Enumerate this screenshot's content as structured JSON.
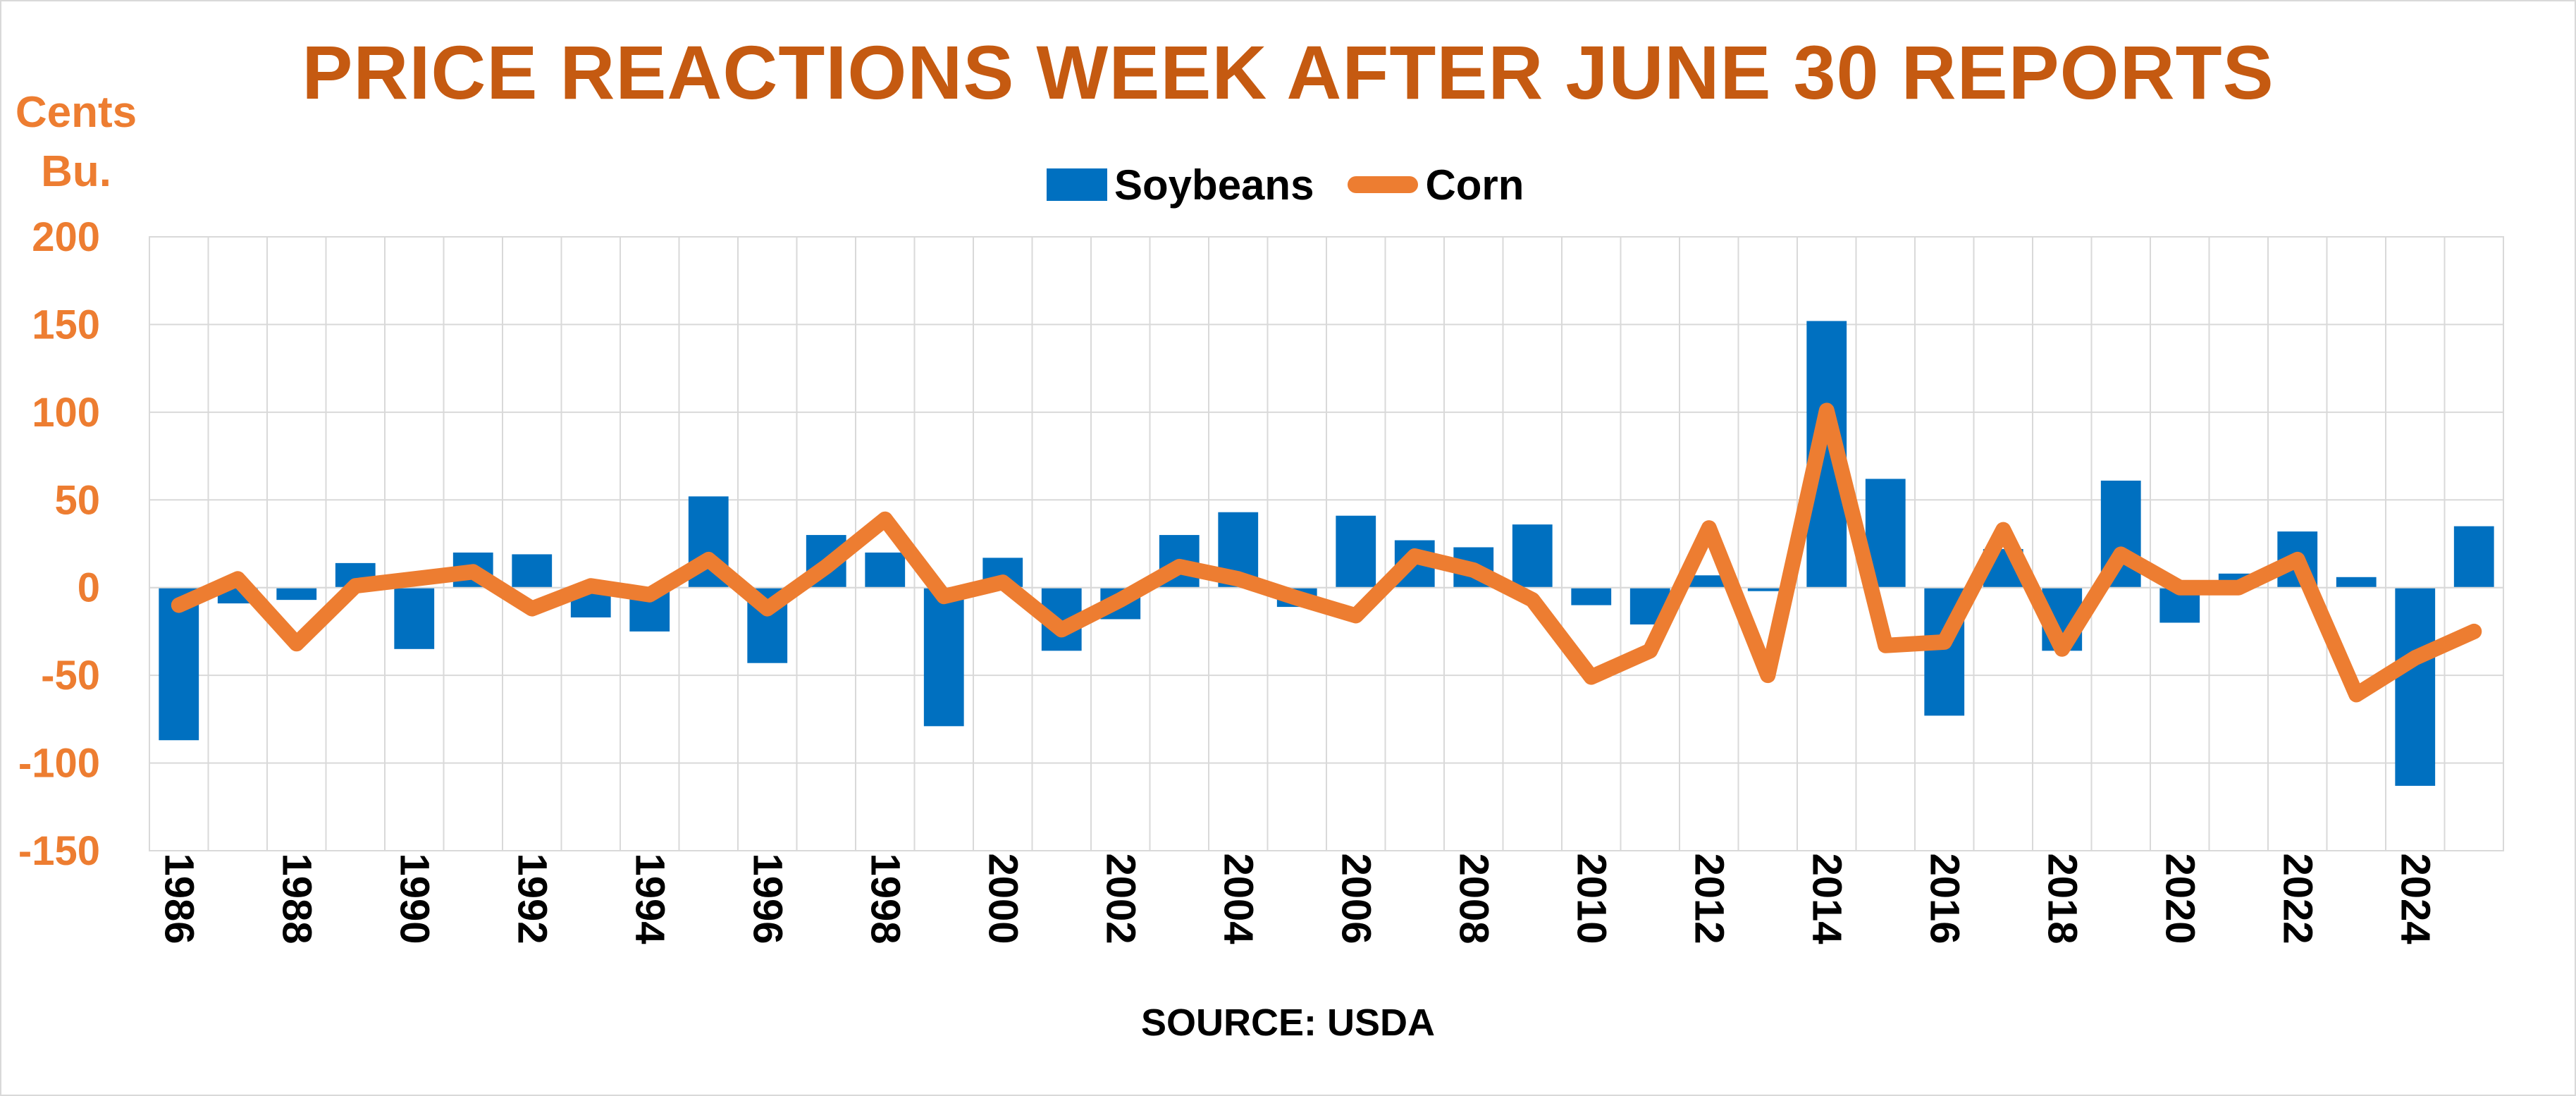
{
  "chart_data": {
    "type": "bar",
    "title": "PRICE REACTIONS WEEK AFTER JUNE 30 REPORTS",
    "ylabel": "Cents Bu.",
    "ylabel_lines": [
      "Cents",
      "Bu."
    ],
    "source": "SOURCE: USDA",
    "ylim": [
      -150,
      200
    ],
    "y_ticks": [
      200,
      150,
      100,
      50,
      0,
      -50,
      -100,
      -150
    ],
    "grid": true,
    "legend_position": "top-center",
    "x": [
      1986,
      1987,
      1988,
      1989,
      1990,
      1991,
      1992,
      1993,
      1994,
      1995,
      1996,
      1997,
      1998,
      1999,
      2000,
      2001,
      2002,
      2003,
      2004,
      2005,
      2006,
      2007,
      2008,
      2009,
      2010,
      2011,
      2012,
      2013,
      2014,
      2015,
      2016,
      2017,
      2018,
      2019,
      2020,
      2021,
      2022,
      2023,
      2024,
      2025
    ],
    "x_tick_labels": [
      "1986",
      "1988",
      "1990",
      "1992",
      "1994",
      "1996",
      "1998",
      "2000",
      "2002",
      "2004",
      "2006",
      "2008",
      "2010",
      "2012",
      "2014",
      "2016",
      "2018",
      "2020",
      "2022",
      "2024"
    ],
    "series": [
      {
        "name": "Soybeans",
        "type": "bar",
        "color": "#0070c0",
        "values": [
          -87,
          -9,
          -7,
          14,
          -35,
          20,
          19,
          -17,
          -25,
          52,
          -43,
          30,
          20,
          -79,
          17,
          -36,
          -18,
          30,
          43,
          -11,
          41,
          27,
          23,
          36,
          -10,
          -21,
          7,
          -2,
          152,
          62,
          -73,
          22,
          -36,
          61,
          -20,
          8,
          32,
          6,
          -113,
          35
        ]
      },
      {
        "name": "Corn",
        "type": "line",
        "color": "#ed7d31",
        "values": [
          -10,
          5,
          -32,
          1,
          5,
          9,
          -12,
          1,
          -4,
          16,
          -12,
          12,
          39,
          -5,
          3,
          -24,
          -7,
          12,
          5,
          -6,
          -16,
          18,
          10,
          -7,
          -51,
          -36,
          34,
          -50,
          101,
          -33,
          -31,
          33,
          -35,
          19,
          0,
          0,
          16,
          -61,
          -40,
          -25
        ]
      }
    ],
    "colors": {
      "title": "#c55a11",
      "axis_text": "#ed7d31",
      "grid": "#d9d9d9"
    }
  }
}
